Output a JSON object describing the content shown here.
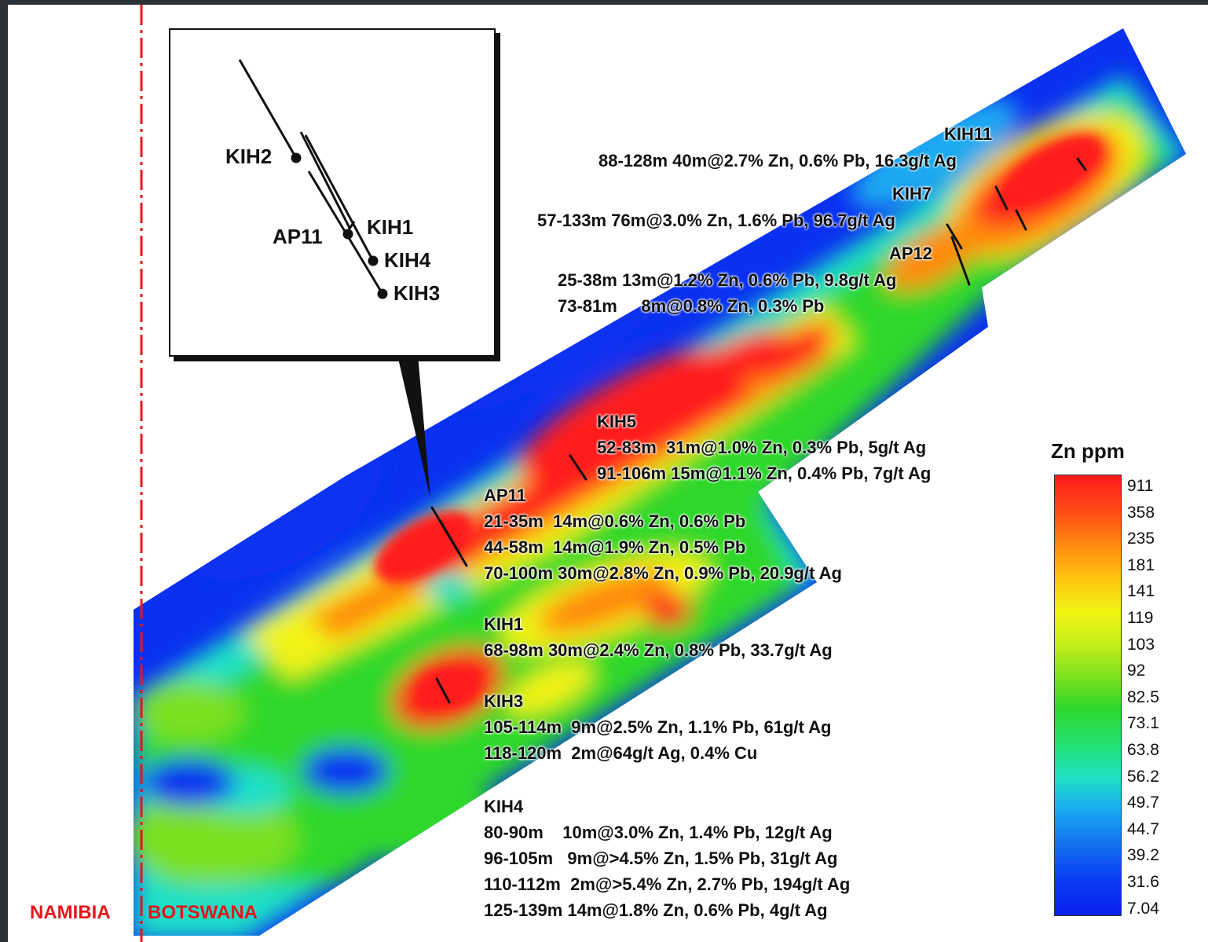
{
  "borders": {
    "west": "NAMIBIA",
    "east": "BOTSWANA"
  },
  "legend": {
    "title": "Zn ppm",
    "ticks": [
      "911",
      "358",
      "235",
      "181",
      "141",
      "119",
      "103",
      "92",
      "82.5",
      "73.1",
      "63.8",
      "56.2",
      "49.7",
      "44.7",
      "39.2",
      "31.6",
      "7.04"
    ]
  },
  "inset_labels": {
    "kih2": "KIH2",
    "ap11": "AP11",
    "kih1": "KIH1",
    "kih4": "KIH4",
    "kih3": "KIH3"
  },
  "annotations": {
    "kih11": {
      "name": "KIH11",
      "lines": [
        "88-128m 40m@2.7% Zn, 0.6% Pb, 16.3g/t Ag"
      ]
    },
    "kih7": {
      "name": "KIH7",
      "lines": [
        "57-133m 76m@3.0% Zn, 1.6% Pb, 96.7g/t Ag"
      ]
    },
    "ap12": {
      "name": "AP12",
      "lines": [
        "25-38m 13m@1.2% Zn, 0.6% Pb, 9.8g/t Ag",
        "73-81m     8m@0.8% Zn, 0.3% Pb"
      ]
    },
    "kih5": {
      "name": "KIH5",
      "lines": [
        "52-83m  31m@1.0% Zn, 0.3% Pb, 5g/t Ag",
        "91-106m 15m@1.1% Zn, 0.4% Pb, 7g/t Ag"
      ]
    },
    "ap11": {
      "name": "AP11",
      "lines": [
        "21-35m  14m@0.6% Zn, 0.6% Pb",
        "44-58m  14m@1.9% Zn, 0.5% Pb",
        "70-100m 30m@2.8% Zn, 0.9% Pb, 20.9g/t Ag"
      ]
    },
    "kih1": {
      "name": "KIH1",
      "lines": [
        "68-98m 30m@2.4% Zn, 0.8% Pb, 33.7g/t Ag"
      ]
    },
    "kih3": {
      "name": "KIH3",
      "lines": [
        "105-114m  9m@2.5% Zn, 1.1% Pb, 61g/t Ag",
        "118-120m  2m@64g/t Ag, 0.4% Cu"
      ]
    },
    "kih4": {
      "name": "KIH4",
      "lines": [
        "80-90m    10m@3.0% Zn, 1.4% Pb, 12g/t Ag",
        "96-105m   9m@>4.5% Zn, 1.5% Pb, 31g/t Ag",
        "110-112m  2m@>5.4% Zn, 2.7% Pb, 194g/t Ag",
        "125-139m 14m@1.8% Zn, 0.6% Pb, 4g/t Ag"
      ]
    }
  },
  "colors": {
    "border_line": "#e8141a",
    "high": "#ff1a1a",
    "mid_high": "#ff8a10",
    "mid": "#f2f312",
    "mid_low": "#2ed82a",
    "low_mid": "#1fe0c8",
    "low": "#0a30f0"
  }
}
